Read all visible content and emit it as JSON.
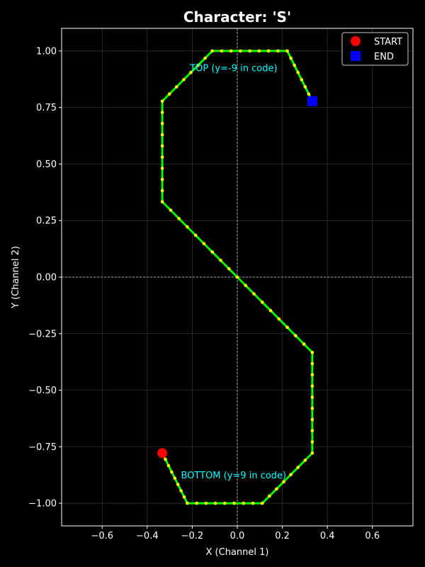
{
  "chart_data": {
    "type": "line",
    "title": "Character: 'S'",
    "xlabel": "X (Channel 1)",
    "ylabel": "Y (Channel 2)",
    "xlim": [
      -0.78,
      0.78
    ],
    "ylim": [
      -1.1,
      1.1
    ],
    "xticks": [
      -0.6,
      -0.4,
      -0.2,
      0.0,
      0.2,
      0.4,
      0.6
    ],
    "yticks": [
      -1.0,
      -0.75,
      -0.5,
      -0.25,
      0.0,
      0.25,
      0.5,
      0.75,
      1.0
    ],
    "xtick_labels": [
      "−0.6",
      "−0.4",
      "−0.2",
      "0.0",
      "0.2",
      "0.4",
      "0.6"
    ],
    "ytick_labels": [
      "−1.00",
      "−0.75",
      "−0.50",
      "−0.25",
      "0.00",
      "0.25",
      "0.50",
      "0.75",
      "1.00"
    ],
    "grid": true,
    "zero_lines": true,
    "legend_position": "top-right",
    "colors": {
      "background": "#000000",
      "path": "#00ff00",
      "points": "#ffff00",
      "start": "#ff0000",
      "end": "#0000ff",
      "annotation": "#00ffff",
      "grid": "#444444"
    },
    "path_vertices": [
      [
        -0.333,
        -0.778
      ],
      [
        -0.222,
        -1.0
      ],
      [
        0.111,
        -1.0
      ],
      [
        0.333,
        -0.778
      ],
      [
        0.333,
        -0.333
      ],
      [
        0.0,
        0.0
      ],
      [
        -0.333,
        0.333
      ],
      [
        -0.333,
        0.778
      ],
      [
        -0.111,
        1.0
      ],
      [
        0.222,
        1.0
      ],
      [
        0.333,
        0.778
      ]
    ],
    "points_per_segment": [
      8,
      8,
      7,
      9,
      9,
      9,
      9,
      7,
      8,
      7
    ],
    "start": {
      "label": "START",
      "x": -0.333,
      "y": -0.778
    },
    "end": {
      "label": "END",
      "x": 0.333,
      "y": 0.778
    },
    "annotations": [
      {
        "text": "TOP (y=-9 in code)",
        "x": -0.21,
        "y": 0.91
      },
      {
        "text": "BOTTOM (y=9 in code)",
        "x": -0.25,
        "y": -0.89
      }
    ]
  }
}
